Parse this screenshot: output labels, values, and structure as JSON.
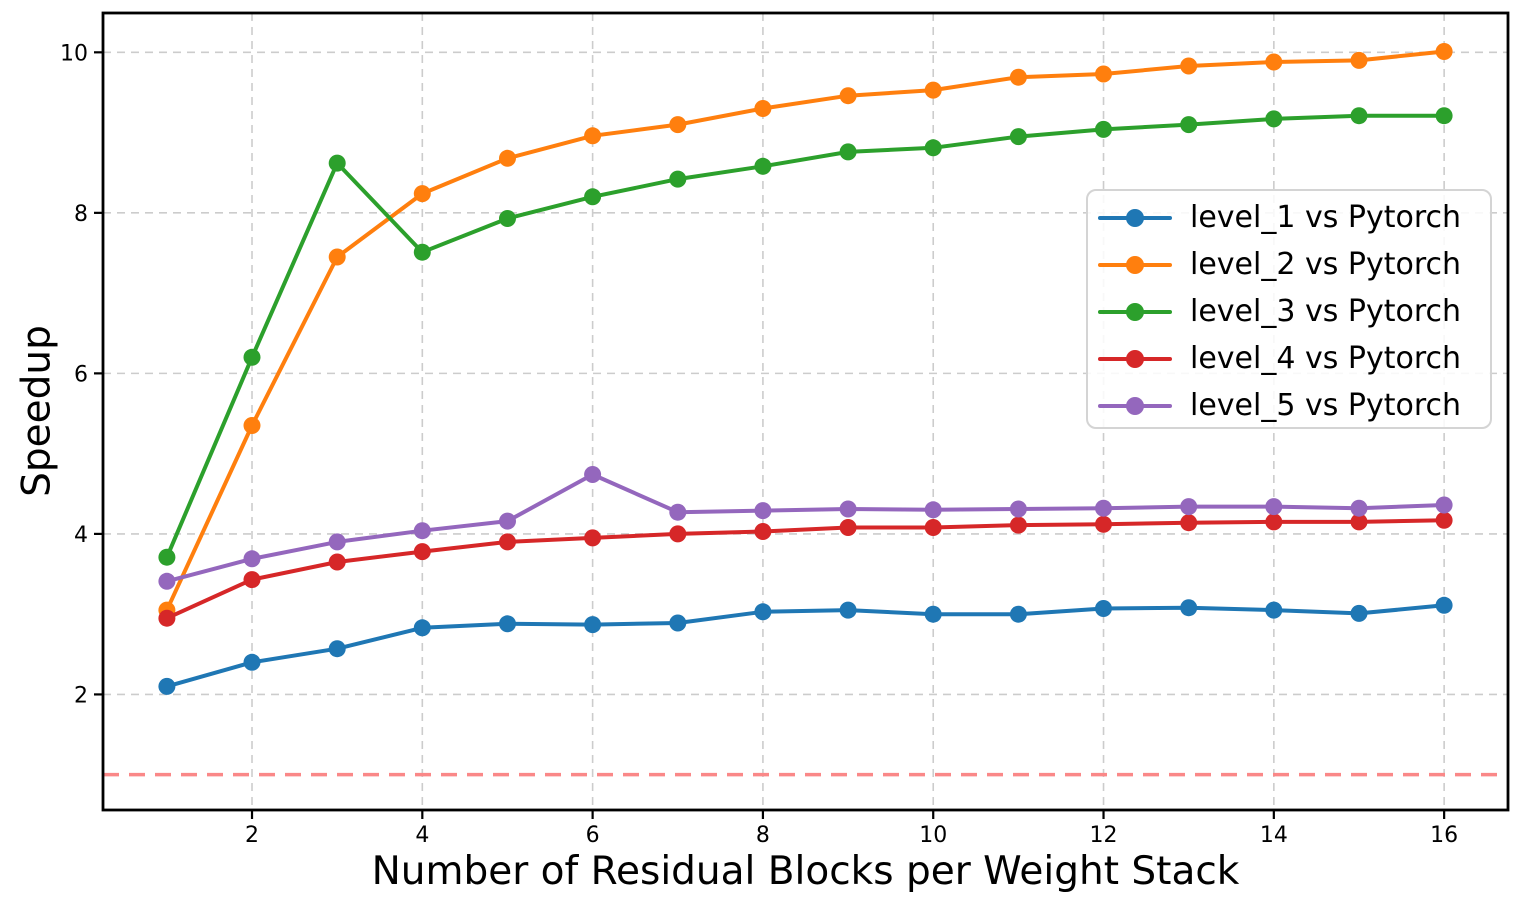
{
  "chart_data": {
    "type": "line",
    "title": "",
    "xlabel": "Number of Residual Blocks per Weight Stack",
    "ylabel": "Speedup",
    "x": [
      1,
      2,
      3,
      4,
      5,
      6,
      7,
      8,
      9,
      10,
      11,
      12,
      13,
      14,
      15,
      16
    ],
    "series": [
      {
        "id": "level_1",
        "name": "level_1 vs Pytorch",
        "color": "#1f77b4",
        "values": [
          2.1,
          2.4,
          2.57,
          2.83,
          2.88,
          2.87,
          2.89,
          3.03,
          3.05,
          3.0,
          3.0,
          3.07,
          3.08,
          3.05,
          3.01,
          3.11
        ]
      },
      {
        "id": "level_2",
        "name": "level_2 vs Pytorch",
        "color": "#ff7f0e",
        "values": [
          3.05,
          5.35,
          7.45,
          8.24,
          8.68,
          8.96,
          9.1,
          9.3,
          9.46,
          9.53,
          9.69,
          9.73,
          9.83,
          9.88,
          9.9,
          10.01
        ]
      },
      {
        "id": "level_3",
        "name": "level_3 vs Pytorch",
        "color": "#2ca02c",
        "values": [
          3.71,
          6.2,
          8.62,
          7.51,
          7.93,
          8.2,
          8.42,
          8.58,
          8.76,
          8.81,
          8.95,
          9.04,
          9.1,
          9.17,
          9.21,
          9.21
        ]
      },
      {
        "id": "level_4",
        "name": "level_4 vs Pytorch",
        "color": "#d62728",
        "values": [
          2.95,
          3.43,
          3.65,
          3.78,
          3.9,
          3.95,
          4.0,
          4.03,
          4.08,
          4.08,
          4.11,
          4.12,
          4.14,
          4.15,
          4.15,
          4.17
        ]
      },
      {
        "id": "level_5",
        "name": "level_5 vs Pytorch",
        "color": "#9467bd",
        "values": [
          3.41,
          3.69,
          3.9,
          4.04,
          4.16,
          4.74,
          4.27,
          4.29,
          4.31,
          4.3,
          4.31,
          4.32,
          4.34,
          4.34,
          4.32,
          4.36
        ]
      }
    ],
    "baseline": {
      "y": 1.0,
      "color": "#fa8888",
      "style": "dashed"
    },
    "xticks": [
      2,
      4,
      6,
      8,
      10,
      12,
      14,
      16
    ],
    "yticks": [
      2,
      4,
      6,
      8,
      10
    ],
    "xlim": [
      0.25,
      16.75
    ],
    "ylim": [
      0.56,
      10.49
    ],
    "grid": true,
    "grid_color": "#cccccc",
    "legend_position": "right-center",
    "marker": "circle"
  }
}
